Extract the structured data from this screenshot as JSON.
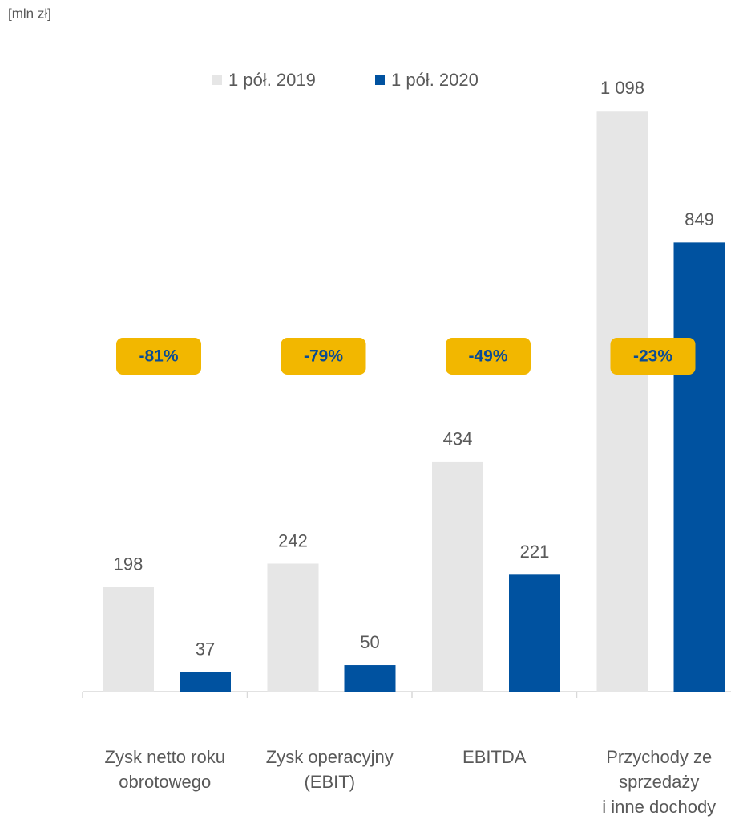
{
  "chart_data": {
    "type": "bar",
    "unit": "[mln zł]",
    "categories": [
      [
        "Zysk netto roku",
        "obrotowego"
      ],
      [
        "Zysk operacyjny",
        "(EBIT)"
      ],
      [
        "EBITDA"
      ],
      [
        "Przychody ze",
        "sprzedaży",
        "i inne dochody"
      ]
    ],
    "series": [
      {
        "name": "1 pół. 2019",
        "color": "#e6e6e6",
        "values": [
          198,
          242,
          434,
          1098
        ],
        "value_labels": [
          "198",
          "242",
          "434",
          "1 098"
        ]
      },
      {
        "name": "1 pół. 2020",
        "color": "#0052a0",
        "values": [
          37,
          50,
          221,
          849
        ]
      }
    ],
    "annotations": [
      "-81%",
      "-79%",
      "-49%",
      "-23%"
    ],
    "ylim": [
      0,
      1200
    ],
    "legend": "top"
  }
}
